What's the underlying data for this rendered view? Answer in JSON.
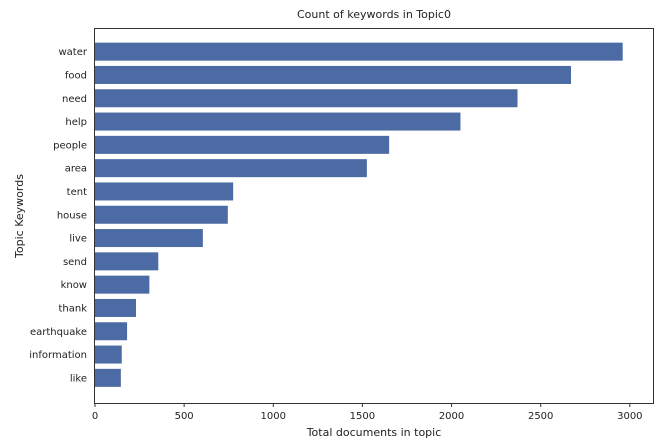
{
  "chart_data": {
    "type": "bar",
    "orientation": "horizontal",
    "title": "Count of keywords in Topic0",
    "xlabel": "Total documents in topic",
    "ylabel": "Topic Keywords",
    "categories": [
      "water",
      "food",
      "need",
      "help",
      "people",
      "area",
      "tent",
      "house",
      "live",
      "send",
      "know",
      "thank",
      "earthquake",
      "information",
      "like"
    ],
    "values": [
      2960,
      2670,
      2370,
      2050,
      1650,
      1525,
      775,
      745,
      605,
      355,
      305,
      230,
      180,
      150,
      145
    ],
    "xlim": [
      0,
      3130
    ],
    "xticks": [
      0,
      500,
      1000,
      1500,
      2000,
      2500,
      3000
    ],
    "bar_color": "#4c6aa3",
    "grid": false,
    "legend": "none"
  }
}
